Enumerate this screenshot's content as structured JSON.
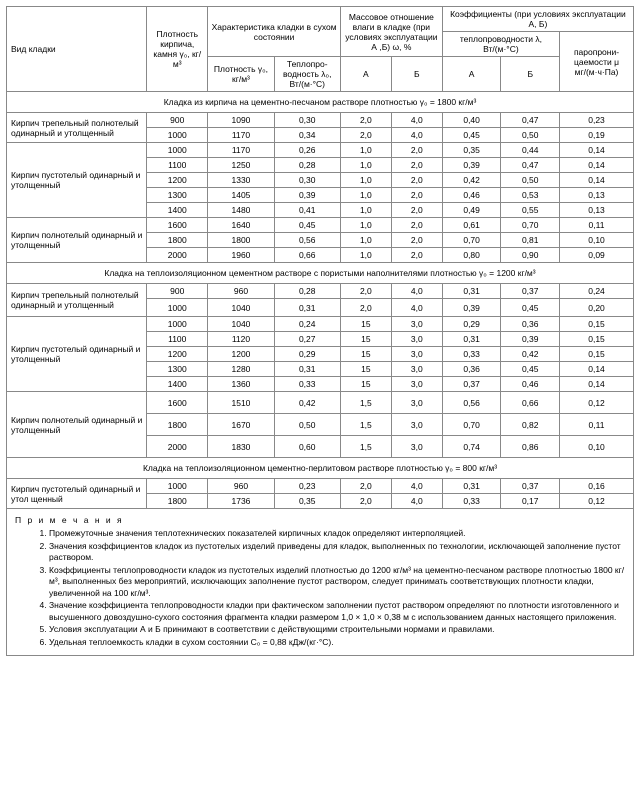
{
  "header": {
    "col_type": "Вид кладки",
    "col_density": "Плот­ность кирпича, камня γ₀, кг/м³",
    "group_dry": "Характеристика кладки в сухом состоянии",
    "col_dry_density": "Плотность γ₀, кг/м³",
    "col_dry_lambda": "Теплопро­водность λ₀, Вт/(м·°С)",
    "group_moisture": "Массовое отношение влаги в кладке (при условиях эксплуатации А ,Б) ω, %",
    "col_A": "А",
    "col_B": "Б",
    "group_coef": "Коэффициенты (при условиях эксплуатации А, Б)",
    "col_lambda": "теплопроводности λ, Вт/(м·°С)",
    "col_mu": "паропрони­цаемости μ мг/(м·ч·Па)"
  },
  "sections": [
    {
      "title": "Кладка из кирпича на цементно-песчаном растворе плотностью γ₀ = 1800 кг/м³",
      "groups": [
        {
          "name": "Кирпич трепельный полнотелый одинарный и утолщенный",
          "rows": [
            [
              "900",
              "1090",
              "0,30",
              "2,0",
              "4,0",
              "0,40",
              "0,47",
              "0,23"
            ],
            [
              "1000",
              "1170",
              "0,34",
              "2,0",
              "4,0",
              "0,45",
              "0,50",
              "0,19"
            ]
          ]
        },
        {
          "name": "Кирпич пустотелый одинарный и утолщенный",
          "rows": [
            [
              "1000",
              "1170",
              "0,26",
              "1,0",
              "2,0",
              "0,35",
              "0,44",
              "0,14"
            ],
            [
              "1100",
              "1250",
              "0,28",
              "1,0",
              "2,0",
              "0,39",
              "0,47",
              "0,14"
            ],
            [
              "1200",
              "1330",
              "0,30",
              "1,0",
              "2,0",
              "0,42",
              "0,50",
              "0,14"
            ],
            [
              "1300",
              "1405",
              "0,39",
              "1,0",
              "2,0",
              "0,46",
              "0,53",
              "0,13"
            ],
            [
              "1400",
              "1480",
              "0,41",
              "1,0",
              "2,0",
              "0,49",
              "0,55",
              "0,13"
            ]
          ]
        },
        {
          "name": "Кирпич полнотелый одинарный и утолщенный",
          "rows": [
            [
              "1600",
              "1640",
              "0,45",
              "1,0",
              "2,0",
              "0,61",
              "0,70",
              "0,11"
            ],
            [
              "1800",
              "1800",
              "0,56",
              "1,0",
              "2,0",
              "0,70",
              "0,81",
              "0,10"
            ],
            [
              "2000",
              "1960",
              "0,66",
              "1,0",
              "2,0",
              "0,80",
              "0,90",
              "0,09"
            ]
          ]
        }
      ]
    },
    {
      "title": "Кладка на теплоизоляционном цементном растворе с пористыми наполнителями плотностью γ₀ = 1200 кг/м³",
      "groups": [
        {
          "name": "Кирпич трепельный полнотелый одинарный и утолщенный",
          "rows": [
            [
              "900",
              "960",
              "0,28",
              "2,0",
              "4,0",
              "0,31",
              "0,37",
              "0,24"
            ],
            [
              "1000",
              "1040",
              "0,31",
              "2,0",
              "4,0",
              "0,39",
              "0,45",
              "0,20"
            ]
          ],
          "extra_gap": true
        },
        {
          "name": "Кирпич пустотелый одинарный и утолщенный",
          "rows": [
            [
              "1000",
              "1040",
              "0,24",
              "15",
              "3,0",
              "0,29",
              "0,36",
              "0,15"
            ],
            [
              "1100",
              "1120",
              "0,27",
              "15",
              "3,0",
              "0,31",
              "0,39",
              "0,15"
            ],
            [
              "1200",
              "1200",
              "0,29",
              "15",
              "3,0",
              "0,33",
              "0,42",
              "0,15"
            ],
            [
              "1300",
              "1280",
              "0,31",
              "15",
              "3,0",
              "0,36",
              "0,45",
              "0,14"
            ],
            [
              "1400",
              "1360",
              "0,33",
              "15",
              "3,0",
              "0,37",
              "0,46",
              "0,14"
            ]
          ]
        },
        {
          "name": "Кирпич полнотелый одинарный и утолщенный",
          "rows": [
            [
              "1600",
              "1510",
              "0,42",
              "1,5",
              "3,0",
              "0,56",
              "0,66",
              "0,12"
            ],
            [
              "1800",
              "1670",
              "0,50",
              "1,5",
              "3,0",
              "0,70",
              "0,82",
              "0,11"
            ],
            [
              "2000",
              "1830",
              "0,60",
              "1,5",
              "3,0",
              "0,74",
              "0,86",
              "0,10"
            ]
          ],
          "tall": true
        }
      ]
    },
    {
      "title": "Кладка на теплоизоляционном цементно-перлитовом растворе плотностью γ₀ = 800 кг/м³",
      "groups": [
        {
          "name": "Кирпич пустотелый одинарный и утол щенный",
          "rows": [
            [
              "1000",
              "960",
              "0,23",
              "2,0",
              "4,0",
              "0,31",
              "0,37",
              "0,16"
            ],
            [
              "1800",
              "1736",
              "0,35",
              "2,0",
              "4,0",
              "0,33",
              "0,17",
              "0,12"
            ]
          ]
        }
      ]
    }
  ],
  "notes": {
    "title": "П р и м е ч а н и я",
    "items": [
      "Промежуточные значения теплотехнических показателей кирпичных кладок определяют интерполяцией.",
      "Значения коэффициентов кладок из пустотелых изделий приведены для кладок, выполненных по технологии, исключающей заполнение пустот раствором.",
      "Коэффициенты теплопроводности кладок из пустотелых изделий плотностью до 1200 кг/м³ на цементно-песчаном растворе плотностью 1800 кг/м³, выполненных без мероприятий, исключающих заполнение пустот раствором, следует принимать соответствующих плотности кладки, увеличенной на 100 кг/м³.",
      "Значение коэффициента теплопроводности кладки при фактическом заполнении пустот раствором определяют по плотности изготовленного и высушенного довоздушно-сухого состояния фрагмента кладки размером 1,0 × 1,0 × 0,38 м с использованием данных настоящего приложения.",
      "Условия эксплуатации  А и Б принимают в соответствии с действующими строительными нормами и правилами.",
      "Удельная теплоемкость кладки в сухом состоянии C₀ = 0,88 кДж/(кг·°С)."
    ]
  },
  "style": {
    "col_widths": [
      "110",
      "48",
      "52",
      "52",
      "40",
      "40",
      "46",
      "46",
      "58"
    ]
  }
}
